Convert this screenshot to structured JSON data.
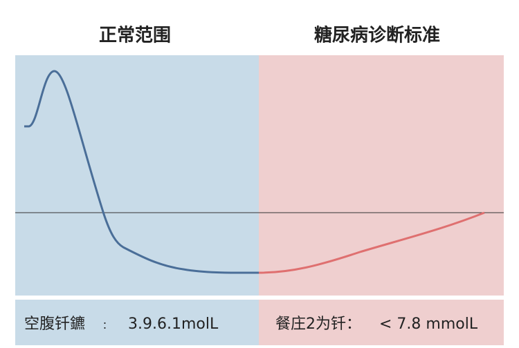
{
  "header": {
    "left_title": "正常范围",
    "right_title": "糖尿病诊断标准"
  },
  "footer": {
    "left": {
      "label": "空腹钎鑣",
      "separator": "：",
      "value": "3.9.6.1molL"
    },
    "right": {
      "label": "餐庄2为钎：",
      "value": "< 7.8 mmolL"
    }
  }
}
